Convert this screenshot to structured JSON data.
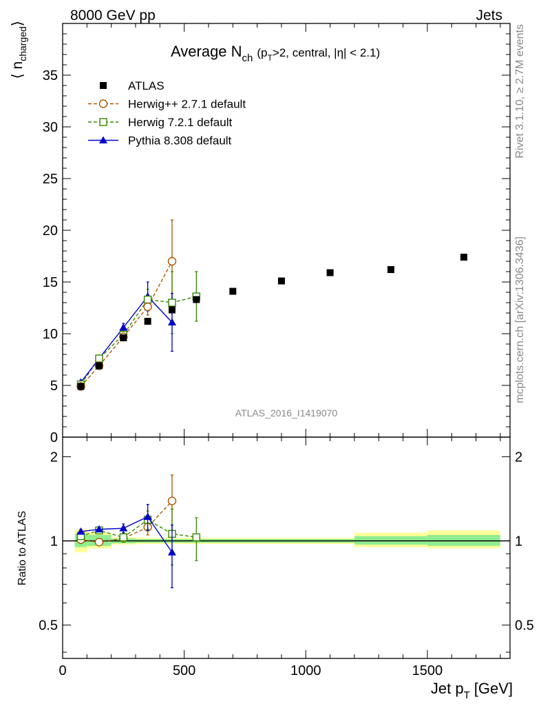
{
  "header": {
    "left": "8000 GeV pp",
    "right": "Jets"
  },
  "side_text": {
    "rivet": "Rivet 3.1.10, ≥ 2.7M events",
    "mcplots": "mcplots.cern.ch [arXiv:1306.3436]"
  },
  "watermark": "ATLAS_2016_I1419070",
  "colors": {
    "atlas": "#000000",
    "herwigpp": "#aa5500",
    "herwig7": "#338800",
    "pythia": "#0000cc",
    "band_inner": "#90ee90",
    "band_outer": "#ffff99"
  },
  "chart_data": [
    {
      "type": "scatter",
      "title_main": "Average N",
      "title_sub": "ch",
      "title_cond_pre": "(p",
      "title_cond_sub": "T",
      "title_cond_post": ">2, central, |η| < 2.1)",
      "ylabel_main": "⟨ n",
      "ylabel_sub": "charged",
      "ylabel_close": "⟩",
      "ylim": [
        0,
        40
      ],
      "y_ticks": [
        0,
        5,
        10,
        15,
        20,
        25,
        30,
        35
      ],
      "y_tick_labels": [
        "0",
        "5",
        "10",
        "15",
        "20",
        "25",
        "30",
        "35"
      ],
      "xlim": [
        0,
        1840
      ],
      "legend_position": "top-left",
      "series": [
        {
          "name": "ATLAS",
          "key": "atlas",
          "marker": "square-filled",
          "line": "none",
          "x": [
            75,
            150,
            250,
            350,
            450,
            550,
            700,
            900,
            1100,
            1350,
            1650
          ],
          "y": [
            4.9,
            6.9,
            9.6,
            11.2,
            12.3,
            13.3,
            14.1,
            15.1,
            15.9,
            16.2,
            17.4
          ]
        },
        {
          "name": "Herwig++ 2.7.1 default",
          "key": "herwigpp",
          "marker": "circle-open",
          "line": "dashed",
          "x": [
            75,
            150,
            250,
            350,
            450
          ],
          "y": [
            4.9,
            6.9,
            9.7,
            12.6,
            17.0
          ],
          "err": [
            0.2,
            0.2,
            0.3,
            0.8,
            4.0
          ]
        },
        {
          "name": "Herwig 7.2.1 default",
          "key": "herwig7",
          "marker": "square-open",
          "line": "dashed",
          "x": [
            75,
            150,
            250,
            350,
            450,
            550
          ],
          "y": [
            5.1,
            7.6,
            9.9,
            13.3,
            13.0,
            13.6
          ],
          "err": [
            0.2,
            0.2,
            0.4,
            1.0,
            3.0,
            2.4
          ]
        },
        {
          "name": "Pythia 8.308 default",
          "key": "pythia",
          "marker": "triangle-filled",
          "line": "solid",
          "x": [
            75,
            150,
            250,
            350,
            450
          ],
          "y": [
            5.3,
            7.6,
            10.6,
            13.6,
            11.1
          ],
          "err": [
            0.2,
            0.2,
            0.4,
            1.4,
            2.8
          ]
        }
      ]
    },
    {
      "type": "scatter",
      "ylabel": "Ratio to ATLAS",
      "xlabel_main": "Jet p",
      "xlabel_sub": "T",
      "xlabel_unit": "[GeV]",
      "log_y": true,
      "ylim": [
        0.38,
        2.35
      ],
      "y_ticks": [
        0.5,
        1,
        2
      ],
      "y_tick_labels": [
        "0.5",
        "1",
        "2"
      ],
      "xlim": [
        0,
        1840
      ],
      "x_ticks": [
        0,
        500,
        1000,
        1500
      ],
      "x_tick_labels": [
        "0",
        "500",
        "1000",
        "1500"
      ],
      "reference_line": 1,
      "uncertainty_bands": [
        {
          "x": [
            50,
            100
          ],
          "inner": [
            0.95,
            1.06
          ],
          "outer": [
            0.91,
            1.1
          ]
        },
        {
          "x": [
            100,
            200
          ],
          "inner": [
            0.96,
            1.05
          ],
          "outer": [
            0.94,
            1.07
          ]
        },
        {
          "x": [
            200,
            300
          ],
          "inner": [
            0.98,
            1.02
          ],
          "outer": [
            0.97,
            1.03
          ]
        },
        {
          "x": [
            300,
            400
          ],
          "inner": [
            0.985,
            1.015
          ],
          "outer": [
            0.975,
            1.025
          ]
        },
        {
          "x": [
            400,
            500
          ],
          "inner": [
            0.985,
            1.015
          ],
          "outer": [
            0.975,
            1.025
          ]
        },
        {
          "x": [
            500,
            600
          ],
          "inner": [
            0.985,
            1.015
          ],
          "outer": [
            0.975,
            1.025
          ]
        },
        {
          "x": [
            600,
            800
          ],
          "inner": [
            0.985,
            1.015
          ],
          "outer": [
            0.975,
            1.025
          ]
        },
        {
          "x": [
            800,
            1000
          ],
          "inner": [
            0.985,
            1.015
          ],
          "outer": [
            0.975,
            1.025
          ]
        },
        {
          "x": [
            1000,
            1200
          ],
          "inner": [
            0.985,
            1.015
          ],
          "outer": [
            0.975,
            1.025
          ]
        },
        {
          "x": [
            1200,
            1500
          ],
          "inner": [
            0.97,
            1.04
          ],
          "outer": [
            0.95,
            1.07
          ]
        },
        {
          "x": [
            1500,
            1800
          ],
          "inner": [
            0.96,
            1.05
          ],
          "outer": [
            0.94,
            1.09
          ]
        }
      ],
      "series": [
        {
          "name": "Herwig++ 2.7.1 default",
          "key": "herwigpp",
          "marker": "circle-open",
          "line": "dashed",
          "x": [
            75,
            150,
            250,
            350,
            450
          ],
          "y": [
            1.01,
            0.99,
            1.02,
            1.12,
            1.39
          ],
          "err": [
            0.02,
            0.02,
            0.03,
            0.07,
            0.33
          ]
        },
        {
          "name": "Herwig 7.2.1 default",
          "key": "herwig7",
          "marker": "square-open",
          "line": "dashed",
          "x": [
            75,
            150,
            250,
            350,
            450,
            550
          ],
          "y": [
            1.04,
            1.09,
            1.03,
            1.19,
            1.06,
            1.03
          ],
          "err": [
            0.02,
            0.02,
            0.04,
            0.09,
            0.24,
            0.18
          ]
        },
        {
          "name": "Pythia 8.308 default",
          "key": "pythia",
          "marker": "triangle-filled",
          "line": "solid",
          "x": [
            75,
            150,
            250,
            350,
            450
          ],
          "y": [
            1.08,
            1.1,
            1.11,
            1.22,
            0.91
          ],
          "err": [
            0.02,
            0.02,
            0.04,
            0.13,
            0.23
          ]
        }
      ]
    }
  ]
}
